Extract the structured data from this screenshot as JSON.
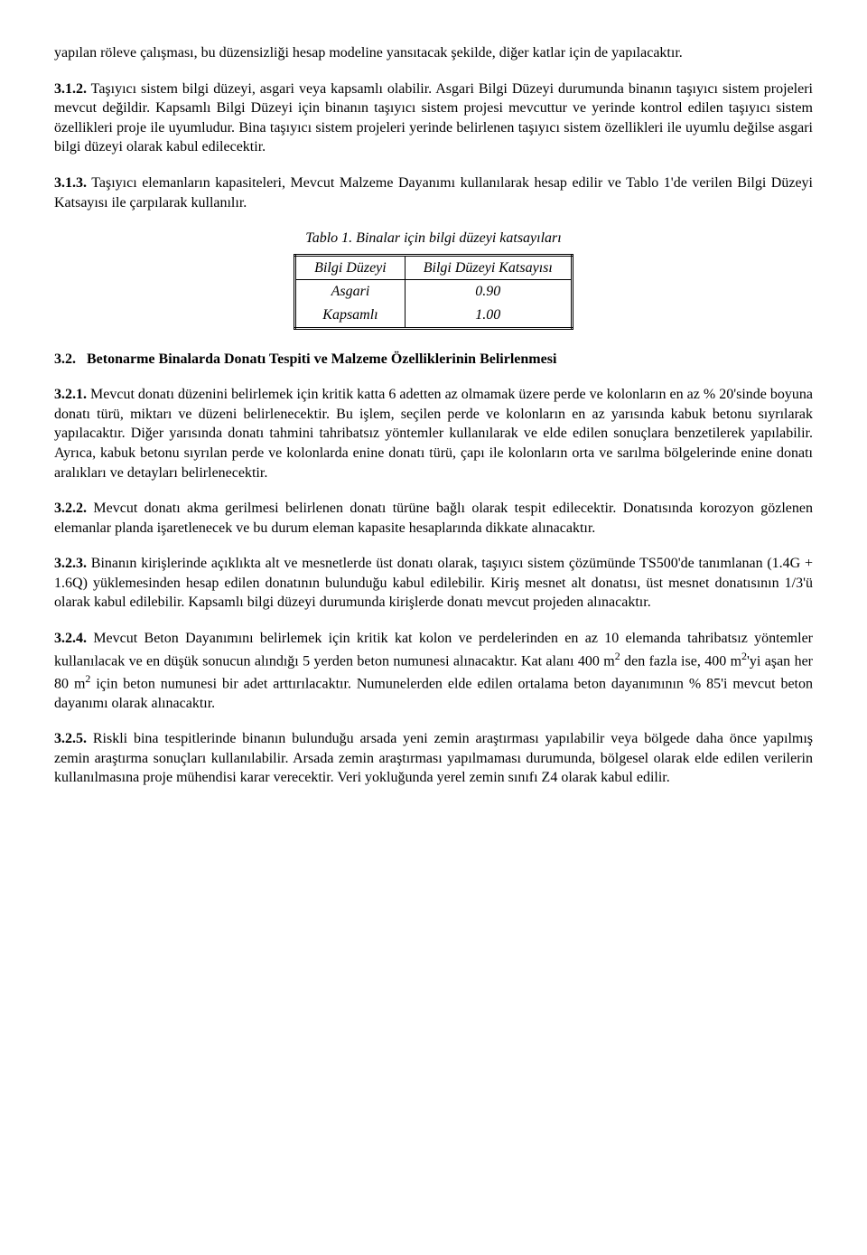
{
  "p1": "yapılan röleve çalışması, bu düzensizliği hesap modeline yansıtacak şekilde, diğer katlar için de yapılacaktır.",
  "p2_num": "3.1.2.",
  "p2": "Taşıyıcı sistem bilgi düzeyi, asgari veya kapsamlı olabilir. Asgari Bilgi Düzeyi durumunda binanın taşıyıcı sistem projeleri mevcut değildir. Kapsamlı Bilgi Düzeyi için binanın taşıyıcı sistem projesi mevcuttur ve yerinde kontrol edilen taşıyıcı sistem özellikleri proje ile uyumludur. Bina taşıyıcı sistem projeleri yerinde belirlenen taşıyıcı sistem özellikleri ile uyumlu değilse asgari bilgi düzeyi olarak kabul edilecektir.",
  "p3_num": "3.1.3.",
  "p3": "Taşıyıcı elemanların kapasiteleri, Mevcut Malzeme Dayanımı kullanılarak hesap edilir ve Tablo 1'de verilen Bilgi Düzeyi Katsayısı ile çarpılarak kullanılır.",
  "table": {
    "caption": "Tablo 1. Binalar için bilgi düzeyi katsayıları",
    "col1_header": "Bilgi Düzeyi",
    "col2_header": "Bilgi Düzeyi Katsayısı",
    "rows": [
      {
        "c1": "Asgari",
        "c2": "0.90"
      },
      {
        "c1": "Kapsamlı",
        "c2": "1.00"
      }
    ]
  },
  "h32_num": "3.2.",
  "h32": "Betonarme Binalarda Donatı Tespiti ve Malzeme Özelliklerinin Belirlenmesi",
  "p321_num": "3.2.1.",
  "p321": "Mevcut donatı düzenini belirlemek için kritik katta 6 adetten az olmamak üzere perde ve kolonların en az % 20'sinde boyuna donatı türü, miktarı ve düzeni belirlenecektir. Bu işlem, seçilen perde ve kolonların en az yarısında kabuk betonu sıyrılarak yapılacaktır. Diğer yarısında donatı tahmini tahribatsız yöntemler kullanılarak ve elde edilen sonuçlara benzetilerek yapılabilir. Ayrıca, kabuk betonu sıyrılan perde ve kolonlarda enine donatı türü, çapı ile kolonların orta ve sarılma bölgelerinde enine donatı aralıkları ve detayları belirlenecektir.",
  "p322_num": "3.2.2.",
  "p322": "Mevcut donatı akma gerilmesi belirlenen donatı türüne bağlı olarak tespit edilecektir. Donatısında korozyon gözlenen elemanlar planda işaretlenecek ve bu durum eleman kapasite hesaplarında dikkate alınacaktır.",
  "p323_num": "3.2.3.",
  "p323a": "Binanın kirişlerinde açıklıkta alt ve mesnetlerde üst donatı olarak, taşıyıcı sistem çözümünde TS500'de tanımlanan (",
  "p323_formula": "1.4G + 1.6Q",
  "p323b": ") yüklemesinden hesap edilen donatının bulunduğu kabul edilebilir. Kiriş mesnet alt donatısı, üst mesnet donatısının 1/3'ü olarak kabul edilebilir. Kapsamlı bilgi düzeyi durumunda kirişlerde donatı mevcut projeden alınacaktır.",
  "p324_num": "3.2.4.",
  "p324a": "Mevcut Beton Dayanımını belirlemek için kritik kat kolon ve perdelerinden en az 10 elemanda tahribatsız yöntemler kullanılacak ve en düşük sonucun alındığı 5 yerden beton numunesi alınacaktır. Kat alanı 400 m",
  "p324b": " den fazla ise, 400 m",
  "p324c": "'yi aşan her 80 m",
  "p324d": " için beton numunesi bir adet arttırılacaktır. Numunelerden elde edilen ortalama beton dayanımının % 85'i mevcut beton dayanımı olarak alınacaktır.",
  "p325_num": "3.2.5.",
  "p325": "Riskli bina tespitlerinde binanın bulunduğu arsada yeni zemin araştırması yapılabilir veya bölgede daha önce yapılmış zemin araştırma sonuçları kullanılabilir. Arsada zemin araştırması yapılmaması durumunda, bölgesel olarak elde edilen verilerin kullanılmasına proje mühendisi karar verecektir. Veri yokluğunda yerel zemin sınıfı Z4 olarak kabul edilir."
}
